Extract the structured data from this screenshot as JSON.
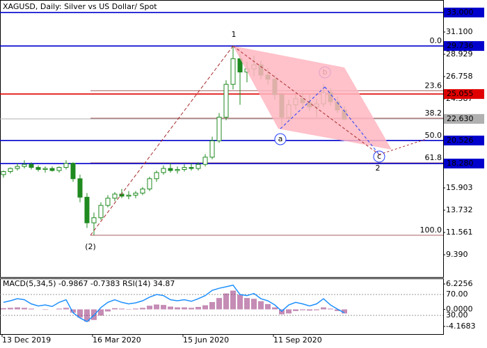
{
  "chart_data": [
    {
      "type": "candlestick",
      "title": "XAGUSD, Daily:  Silver vs US Dollar/ Spot",
      "color": "#1f8a1f",
      "categories": [
        "13 Dec 2019",
        null,
        null,
        null,
        null,
        null,
        null,
        null,
        null,
        null,
        null,
        null,
        null,
        "16 Mar 2020",
        null,
        null,
        null,
        null,
        null,
        null,
        null,
        null,
        null,
        null,
        null,
        null,
        "15 Jun 2020",
        null,
        null,
        null,
        null,
        null,
        null,
        null,
        null,
        null,
        null,
        null,
        null,
        "11 Sep 2020",
        null,
        null,
        null,
        null,
        null,
        null,
        null,
        null,
        null,
        null
      ],
      "open": [
        17.2,
        17.5,
        17.8,
        18.0,
        18.2,
        17.9,
        17.7,
        17.8,
        17.6,
        17.9,
        18.3,
        16.8,
        15.0,
        12.5,
        13.0,
        14.2,
        14.9,
        15.3,
        15.1,
        15.2,
        15.4,
        15.8,
        16.8,
        17.4,
        17.8,
        17.6,
        17.7,
        17.9,
        17.8,
        18.2,
        18.9,
        20.5,
        22.8,
        26.0,
        28.5,
        27.2,
        27.5,
        27.9,
        26.9,
        26.5,
        25.0,
        22.8,
        24.0,
        24.6,
        24.2,
        23.8,
        24.1,
        25.2,
        24.3,
        23.5
      ],
      "high": [
        17.6,
        17.9,
        18.3,
        18.6,
        18.4,
        18.1,
        18.0,
        18.0,
        18.0,
        18.6,
        18.4,
        17.2,
        15.4,
        13.5,
        14.5,
        15.2,
        15.5,
        15.8,
        15.6,
        15.6,
        16.0,
        17.0,
        17.6,
        18.1,
        18.3,
        18.0,
        18.2,
        18.3,
        18.4,
        19.2,
        20.9,
        23.2,
        26.4,
        29.7,
        29.0,
        28.2,
        28.8,
        28.3,
        27.6,
        26.9,
        25.2,
        24.5,
        25.0,
        25.2,
        25.0,
        24.6,
        26.0,
        25.6,
        24.8,
        23.9
      ],
      "low": [
        16.9,
        17.3,
        17.6,
        17.8,
        17.7,
        17.5,
        17.4,
        17.5,
        17.4,
        17.7,
        16.5,
        14.5,
        12.0,
        11.3,
        12.8,
        14.0,
        14.6,
        14.9,
        14.8,
        14.9,
        15.2,
        15.6,
        16.5,
        17.2,
        17.4,
        17.3,
        17.5,
        17.6,
        17.6,
        18.0,
        18.7,
        20.3,
        22.5,
        25.5,
        24.0,
        26.2,
        26.8,
        26.5,
        26.0,
        24.5,
        22.0,
        22.4,
        23.5,
        23.8,
        23.4,
        22.8,
        23.8,
        23.9,
        23.2,
        22.5
      ],
      "close": [
        17.5,
        17.8,
        18.0,
        18.2,
        17.9,
        17.7,
        17.8,
        17.6,
        17.9,
        18.3,
        16.8,
        15.0,
        12.5,
        13.0,
        14.2,
        14.9,
        15.3,
        15.1,
        15.2,
        15.4,
        15.8,
        16.8,
        17.4,
        17.8,
        17.6,
        17.7,
        17.9,
        17.8,
        18.2,
        18.9,
        20.5,
        22.8,
        26.0,
        28.5,
        27.2,
        27.5,
        27.9,
        26.9,
        26.5,
        25.0,
        22.8,
        24.0,
        24.6,
        24.2,
        23.8,
        24.1,
        25.2,
        24.3,
        23.5,
        22.6
      ],
      "ylim": [
        7.22,
        34.22
      ],
      "yticks": [
        {
          "value": 9.39,
          "label": "9.390"
        },
        11.561,
        13.732,
        15.903,
        24.587,
        26.758,
        28.929,
        {
          "value": 31.1,
          "label": "31.100"
        }
      ],
      "levels": [
        {
          "value": 33,
          "label": "33.000",
          "color": "#0000cd"
        },
        {
          "value": 29.736,
          "color": "#0000cd"
        },
        {
          "value": 25.055,
          "color": "#e00000"
        },
        {
          "value": 22.63,
          "label": "22.630",
          "color": "#b0b0b0"
        },
        {
          "value": 20.526,
          "color": "#0000cd"
        },
        {
          "value": 18.28,
          "label": "18.280",
          "color": "#0000cd"
        }
      ],
      "fib": [
        {
          "value": 29.736,
          "label": "0.0"
        },
        {
          "value": 25.383,
          "label": "23.6"
        },
        {
          "value": 22.69,
          "label": "38.2"
        },
        {
          "value": 20.51,
          "label": "50.0"
        },
        {
          "value": 18.34,
          "label": "61.8"
        },
        {
          "value": 11.29,
          "label": "100.0"
        }
      ],
      "wave_labels": [
        "1",
        "(2)",
        "a",
        "b",
        "c",
        "2"
      ]
    },
    {
      "type": "macd",
      "title": "MACD(5,34,5) -0.9867 -0.7383 RSI(14) 34.87",
      "ylim": [
        -6.04,
        7.59
      ],
      "yticks": [
        {
          "value": 6.2256,
          "label": "6.2256"
        },
        {
          "value": 0,
          "label": "0.0000"
        },
        {
          "value": -4.1683,
          "label": "-4.1683"
        }
      ],
      "y2lim": [
        -6,
        101
      ],
      "y2ticks": [
        {
          "value": 70,
          "label": "70.00"
        },
        {
          "value": 30,
          "label": "30.00"
        }
      ],
      "series": [
        {
          "color": "#8b1a6b",
          "values": [
            0.3,
            0.4,
            0.5,
            0.4,
            0.2,
            0.0,
            -0.1,
            0.0,
            0.2,
            0.4,
            -0.8,
            -2.0,
            -3.0,
            -2.6,
            -1.5,
            -0.5,
            0.3,
            0.2,
            0.1,
            0.2,
            0.4,
            0.9,
            1.2,
            1.1,
            0.7,
            0.5,
            0.5,
            0.4,
            0.6,
            1.0,
            1.8,
            2.8,
            3.9,
            4.6,
            3.6,
            2.8,
            2.6,
            2.0,
            1.3,
            0.5,
            -1.2,
            -1.0,
            -0.4,
            -0.2,
            -0.3,
            -0.2,
            0.5,
            0.2,
            -0.4,
            -0.9867
          ]
        },
        {
          "color": "#1e90ff",
          "axis": "y2",
          "values": [
            55,
            58,
            62,
            60,
            52,
            48,
            50,
            47,
            55,
            60,
            35,
            25,
            18,
            30,
            45,
            55,
            60,
            55,
            52,
            54,
            58,
            65,
            70,
            68,
            60,
            58,
            60,
            57,
            62,
            68,
            78,
            82,
            85,
            88,
            70,
            68,
            72,
            62,
            58,
            50,
            38,
            50,
            55,
            52,
            48,
            52,
            62,
            50,
            42,
            34.87
          ]
        }
      ]
    }
  ]
}
